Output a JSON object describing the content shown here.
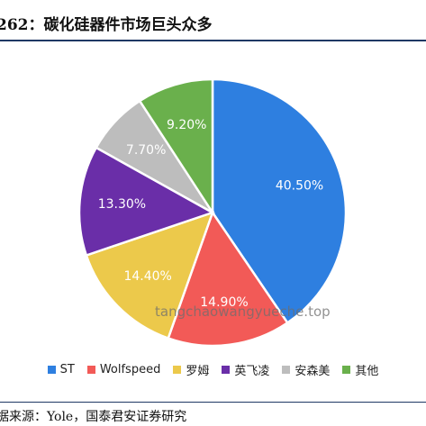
{
  "title": "262：碳化硅器件市场巨头众多",
  "source": "据来源：Yole，国泰君安证券研究",
  "watermark": "tangchaowangyueche.top",
  "chart_data": {
    "type": "pie",
    "start_angle_deg": 0,
    "direction": "clockwise",
    "slices": [
      {
        "label": "ST",
        "value": 40.5,
        "value_label": "40.50%",
        "color": "#2e7fe0",
        "text_color": "#ffffff"
      },
      {
        "label": "Wolfspeed",
        "value": 14.9,
        "value_label": "14.90%",
        "color": "#f25a57",
        "text_color": "#ffffff"
      },
      {
        "label": "罗姆",
        "value": 14.4,
        "value_label": "14.40%",
        "color": "#ecc94b",
        "text_color": "#ffffff"
      },
      {
        "label": "英飞凌",
        "value": 13.3,
        "value_label": "13.30%",
        "color": "#6a2ea8",
        "text_color": "#ffffff"
      },
      {
        "label": "安森美",
        "value": 7.7,
        "value_label": "7.70%",
        "color": "#bdbdbd",
        "text_color": "#ffffff"
      },
      {
        "label": "其他",
        "value": 9.2,
        "value_label": "9.20%",
        "color": "#6ab04c",
        "text_color": "#ffffff"
      }
    ],
    "legend_position": "bottom"
  }
}
